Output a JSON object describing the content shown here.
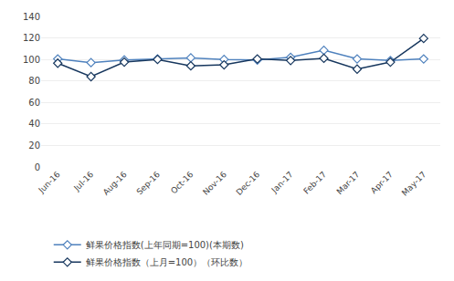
{
  "chart_data": {
    "type": "line",
    "categories": [
      "Jun-16",
      "Jul-16",
      "Aug-16",
      "Sep-16",
      "Oct-16",
      "Nov-16",
      "Dec-16",
      "Jan-17",
      "Feb-17",
      "Mar-17",
      "Apr-17",
      "May-17"
    ],
    "series": [
      {
        "name": "鲜果价格指数(上年同期=100)(本期数)",
        "color": "#4e81bd",
        "marker": "diamond",
        "values": [
          100.5,
          97.0,
          99.5,
          100.5,
          101.5,
          100.0,
          99.5,
          102.0,
          108.5,
          100.5,
          99.0,
          100.5
        ]
      },
      {
        "name": "鲜果价格指数（上月=100）（环比数）",
        "color": "#17375e",
        "marker": "diamond",
        "values": [
          96.5,
          84.0,
          97.5,
          100.0,
          94.0,
          95.0,
          100.5,
          99.0,
          101.0,
          91.0,
          97.5,
          119.5
        ]
      }
    ],
    "ylim": [
      0,
      140
    ],
    "yticks": [
      0,
      20,
      40,
      60,
      80,
      100,
      120,
      140
    ],
    "grid": true,
    "legend": "bottom"
  }
}
